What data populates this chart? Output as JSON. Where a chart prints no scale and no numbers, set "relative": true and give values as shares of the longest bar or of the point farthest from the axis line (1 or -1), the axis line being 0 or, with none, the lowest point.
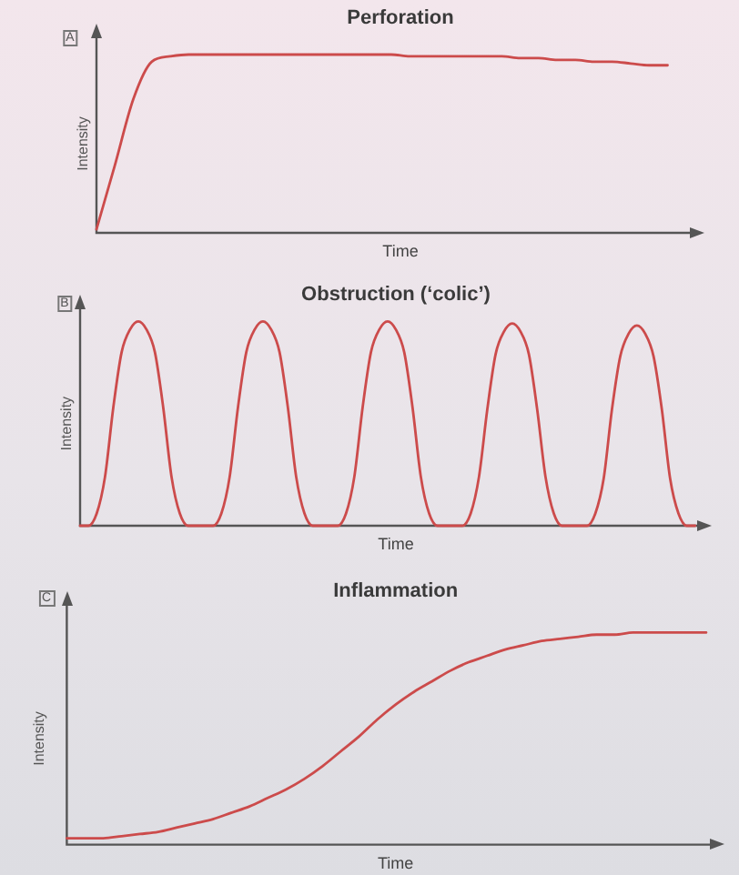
{
  "chart_data": [
    {
      "type": "line",
      "title": "Perforation",
      "xlabel": "Time",
      "ylabel": "Intensity",
      "annotations": [
        "A"
      ],
      "relative": true,
      "marker": "none",
      "line_style": "solid",
      "categories": [
        null,
        null,
        null,
        null,
        null,
        null,
        null,
        null,
        null,
        null,
        null,
        null,
        null,
        null,
        null,
        null,
        null,
        null,
        null,
        null,
        null,
        null,
        null,
        null,
        null,
        null,
        null,
        null,
        null,
        null,
        null,
        null,
        null,
        null
      ],
      "series": [
        {
          "color": "#cc4b4b",
          "values": [
            0.02,
            0.38,
            0.75,
            0.96,
            0.99,
            1,
            1,
            1,
            1,
            1,
            1,
            1,
            1,
            1,
            1,
            1,
            1,
            0.99,
            0.99,
            0.99,
            0.99,
            0.99,
            0.99,
            0.98,
            0.98,
            0.97,
            0.97,
            0.96,
            0.96,
            0.95,
            0.94,
            0.94,
            null,
            null
          ]
        }
      ]
    },
    {
      "type": "line",
      "title": "Obstruction (‘colic’)",
      "xlabel": "Time",
      "ylabel": "Intensity",
      "annotations": [
        "B"
      ],
      "relative": true,
      "marker": "none",
      "line_style": "solid",
      "categories": [
        null,
        null,
        null,
        null,
        null,
        null,
        null,
        null,
        null,
        null,
        null,
        null,
        null,
        null,
        null,
        null,
        null,
        null,
        null,
        null,
        null,
        null,
        null,
        null,
        null,
        null,
        null,
        null,
        null,
        null,
        null,
        null,
        null,
        null,
        null,
        null,
        null,
        null,
        null,
        null,
        null,
        null,
        null,
        null,
        null,
        null,
        null,
        null,
        null,
        null,
        null,
        null,
        null,
        null,
        null,
        null,
        null,
        null,
        null,
        null,
        null,
        null,
        null,
        null,
        null,
        null,
        null,
        null,
        null,
        null,
        null,
        null,
        null,
        null,
        null,
        null,
        null
      ],
      "series": [
        {
          "color": "#cc4b4b",
          "values": [
            0,
            0,
            0.06,
            0.24,
            0.58,
            0.85,
            0.96,
            1,
            0.96,
            0.85,
            0.58,
            0.24,
            0.06,
            0,
            0,
            0,
            0,
            0.06,
            0.24,
            0.58,
            0.85,
            0.96,
            1,
            0.96,
            0.85,
            0.58,
            0.24,
            0.06,
            0,
            0,
            0,
            0,
            0.06,
            0.24,
            0.58,
            0.85,
            0.96,
            1,
            0.96,
            0.85,
            0.58,
            0.24,
            0.06,
            0,
            0,
            0,
            0,
            0.06,
            0.24,
            0.57,
            0.84,
            0.95,
            0.99,
            0.95,
            0.84,
            0.57,
            0.24,
            0.06,
            0,
            0,
            0,
            0,
            0.06,
            0.23,
            0.57,
            0.83,
            0.94,
            0.98,
            0.94,
            0.83,
            0.57,
            0.23,
            0.06,
            0,
            0,
            null,
            null
          ]
        }
      ]
    },
    {
      "type": "line",
      "title": "Inflammation",
      "xlabel": "Time",
      "ylabel": "Intensity",
      "annotations": [
        "C"
      ],
      "relative": true,
      "marker": "none",
      "line_style": "solid",
      "categories": [
        null,
        null,
        null,
        null,
        null,
        null,
        null,
        null,
        null,
        null,
        null,
        null,
        null,
        null,
        null,
        null,
        null,
        null,
        null,
        null,
        null,
        null,
        null,
        null,
        null,
        null,
        null,
        null,
        null,
        null,
        null,
        null,
        null,
        null,
        null,
        null,
        null
      ],
      "series": [
        {
          "color": "#cc4b4b",
          "values": [
            0.03,
            0.03,
            0.03,
            0.04,
            0.05,
            0.06,
            0.08,
            0.1,
            0.12,
            0.15,
            0.18,
            0.22,
            0.26,
            0.31,
            0.37,
            0.44,
            0.51,
            0.59,
            0.66,
            0.72,
            0.77,
            0.82,
            0.86,
            0.89,
            0.92,
            0.94,
            0.96,
            0.97,
            0.98,
            0.99,
            0.99,
            1,
            1,
            1,
            1,
            1,
            null
          ]
        }
      ]
    }
  ]
}
